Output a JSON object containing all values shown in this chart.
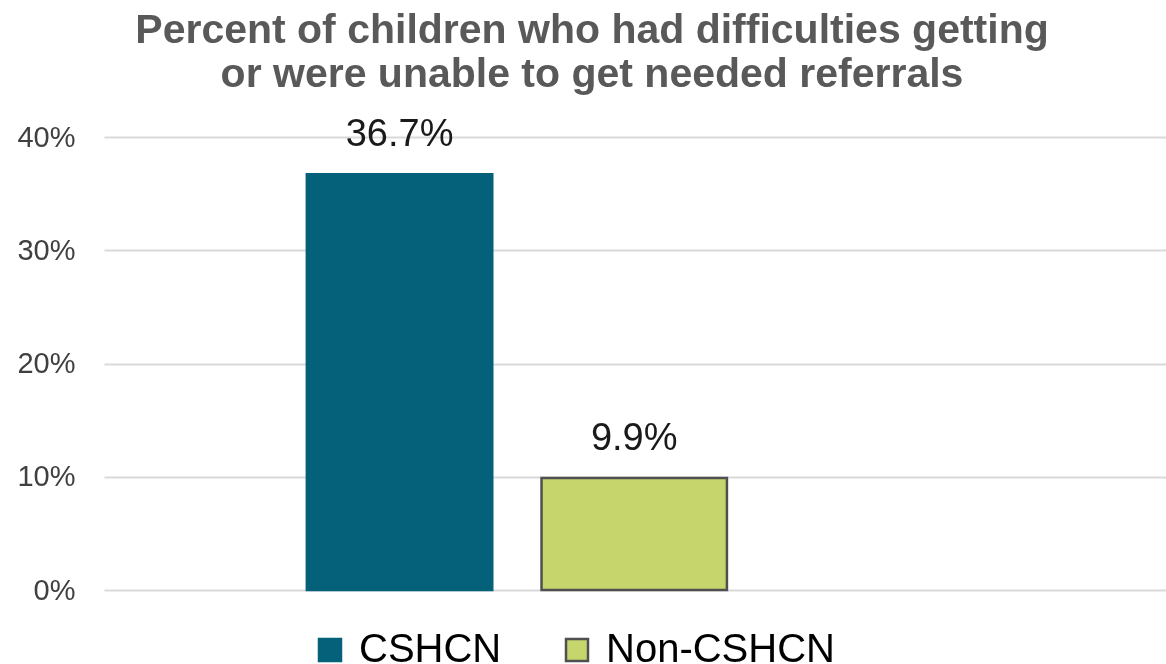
{
  "chart_data": {
    "type": "bar",
    "title": "Percent of children who had difficulties getting\nor were unable to get needed referrals",
    "categories": [
      null
    ],
    "series": [
      {
        "name": "CSHCN",
        "color": "#05607a",
        "values": [
          36.7
        ],
        "value_labels": [
          "36.7%"
        ]
      },
      {
        "name": "Non-CSHCN",
        "color": "#c6d66c",
        "values": [
          9.9
        ],
        "value_labels": [
          "9.9%"
        ]
      }
    ],
    "ylim": [
      0,
      40
    ],
    "yticks": [
      {
        "value": 0,
        "label": "0%"
      },
      {
        "value": 10,
        "label": "10%"
      },
      {
        "value": 20,
        "label": "20%"
      },
      {
        "value": 30,
        "label": "30%"
      },
      {
        "value": 40,
        "label": "40%"
      }
    ],
    "grid": "y",
    "legend": "bottom",
    "tick_labels": "y"
  }
}
